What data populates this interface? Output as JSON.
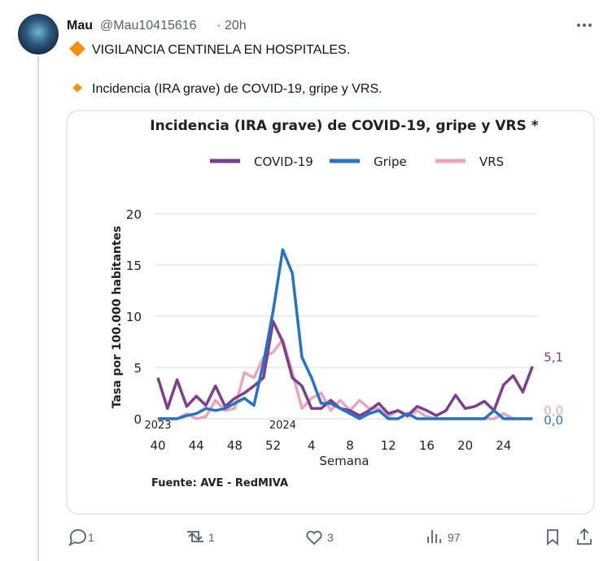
{
  "tweet": {
    "name": "Mau",
    "handle": "@Mau10415616",
    "separator": "·",
    "time": "20h",
    "lines": [
      "VIGILANCIA CENTINELA EN HOSPITALES.",
      "Incidencia (IRA grave) de COVID-19, gripe y VRS."
    ]
  },
  "chart_data": {
    "type": "line",
    "title": "Incidencia (IRA grave) de COVID-19, gripe y VRS *",
    "y_label": "Tasa por 100.000 habitantes",
    "x_label": "Semana",
    "source": "Fuente: AVE - RedMIVA",
    "categories": [
      "40",
      null,
      null,
      null,
      "44",
      null,
      null,
      null,
      "48",
      null,
      null,
      null,
      "52",
      null,
      null,
      null,
      "4",
      null,
      null,
      null,
      "8",
      null,
      null,
      null,
      "12",
      null,
      null,
      null,
      "16",
      null,
      null,
      null,
      "20",
      null,
      null,
      null,
      "24",
      null,
      null,
      null
    ],
    "years": [
      {
        "label": "2023",
        "category_index": 0
      },
      {
        "label": "2024",
        "category_index": 13
      }
    ],
    "ylim": [
      0,
      20
    ],
    "yticks": [
      0,
      5,
      10,
      15,
      20
    ],
    "grid": true,
    "series": [
      {
        "name": "COVID-19",
        "color": "#7b3f8c",
        "end_label": "5,1",
        "values": [
          4.0,
          1.0,
          3.8,
          1.2,
          2.2,
          1.3,
          3.2,
          1.2,
          2.0,
          2.5,
          3.2,
          4.0,
          9.5,
          7.5,
          4.0,
          3.2,
          1.0,
          1.0,
          1.8,
          1.0,
          0.8,
          0.3,
          0.8,
          1.5,
          0.5,
          0.8,
          0.3,
          1.2,
          0.8,
          0.3,
          0.8,
          2.3,
          1.0,
          1.2,
          1.7,
          0.8,
          3.3,
          4.2,
          2.6,
          5.1
        ]
      },
      {
        "name": "Gripe",
        "color": "#2673c4",
        "end_label": "0,0",
        "values": [
          0,
          0,
          0,
          0.3,
          0.5,
          1.0,
          0.8,
          1.0,
          1.5,
          2.0,
          1.3,
          5.5,
          10.5,
          16.5,
          14.2,
          6.0,
          4.0,
          1.5,
          1.5,
          1.0,
          0.5,
          0,
          0.5,
          0.8,
          0,
          0,
          0.5,
          0,
          0,
          0,
          0,
          0,
          0,
          0,
          0,
          0.8,
          0,
          0,
          0,
          0
        ]
      },
      {
        "name": "VRS",
        "color": "#e8a5bc",
        "end_label": "0,0",
        "values": [
          0,
          0,
          0,
          0.5,
          0,
          0.2,
          1.8,
          0.8,
          1.0,
          4.5,
          4.0,
          6.0,
          6.5,
          7.7,
          4.5,
          1.0,
          2.0,
          2.5,
          0.8,
          1.8,
          0.8,
          1.8,
          1.0,
          1.0,
          0.2,
          0.8,
          0.2,
          0.8,
          0.2,
          0,
          0,
          0,
          0,
          0,
          0,
          0,
          0.5,
          0,
          0,
          0
        ]
      }
    ]
  },
  "actions": {
    "replies": 1,
    "reposts": 1,
    "likes": 3,
    "views": 97
  }
}
